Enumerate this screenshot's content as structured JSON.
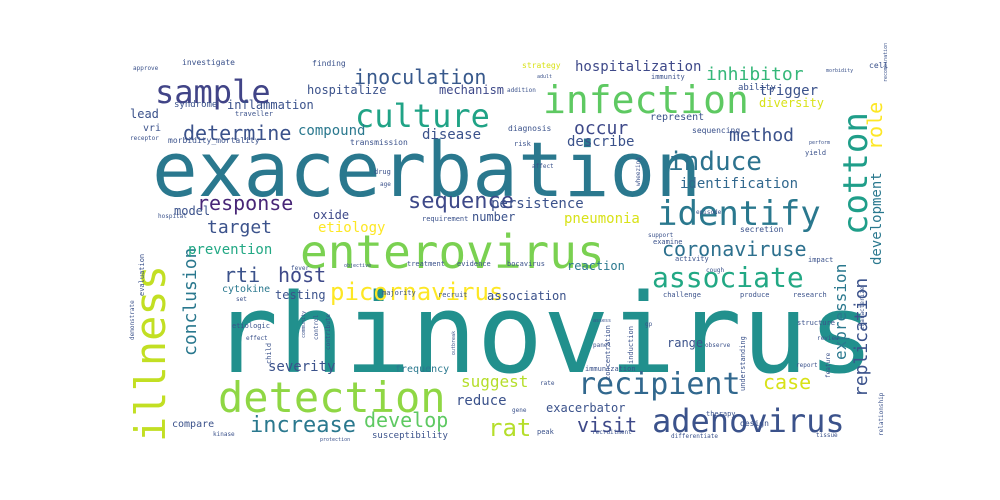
{
  "words": [
    {
      "text": "rhinovirus",
      "color": "#21908d"
    },
    {
      "text": "exacerbation",
      "color": "#2a788e"
    },
    {
      "text": "enterovirus",
      "color": "#7ad151"
    },
    {
      "text": "infection",
      "color": "#5ec962"
    },
    {
      "text": "detection",
      "color": "#8fd744"
    },
    {
      "text": "illness",
      "color": "#c2df23"
    },
    {
      "text": "culture",
      "color": "#20a386"
    },
    {
      "text": "sample",
      "color": "#414487"
    },
    {
      "text": "identify",
      "color": "#2a788e"
    },
    {
      "text": "cotton",
      "color": "#1f9e89"
    },
    {
      "text": "recipient",
      "color": "#31688e"
    },
    {
      "text": "adenovirus",
      "color": "#3b528b"
    },
    {
      "text": "associate",
      "color": "#22a884"
    },
    {
      "text": "induce",
      "color": "#2c728e"
    },
    {
      "text": "picornavirus",
      "color": "#fde725"
    },
    {
      "text": "sequence",
      "color": "#3e4989"
    },
    {
      "text": "inoculation",
      "color": "#38598c"
    },
    {
      "text": "coronaviruse",
      "color": "#2d708e"
    },
    {
      "text": "increase",
      "color": "#2a788e"
    },
    {
      "text": "determine",
      "color": "#3b528b"
    },
    {
      "text": "response",
      "color": "#482677"
    },
    {
      "text": "visit",
      "color": "#3e4989"
    },
    {
      "text": "rat",
      "color": "#b5de2b"
    },
    {
      "text": "develop",
      "color": "#5ec962"
    },
    {
      "text": "host",
      "color": "#3e4989"
    },
    {
      "text": "rti",
      "color": "#3b528b"
    },
    {
      "text": "target",
      "color": "#3b528b"
    },
    {
      "text": "method",
      "color": "#3b528b"
    },
    {
      "text": "occur",
      "color": "#3e4989"
    },
    {
      "text": "inhibitor",
      "color": "#35b779"
    },
    {
      "text": "conclusion",
      "color": "#2a788e"
    },
    {
      "text": "case",
      "color": "#d8e219"
    },
    {
      "text": "role",
      "color": "#fde725"
    },
    {
      "text": "replication",
      "color": "#3b528b"
    },
    {
      "text": "expression",
      "color": "#2a788e"
    },
    {
      "text": "development",
      "color": "#2a788e"
    },
    {
      "text": "persistence",
      "color": "#3b528b"
    },
    {
      "text": "pneumonia",
      "color": "#d8e219"
    },
    {
      "text": "identification",
      "color": "#31688e"
    },
    {
      "text": "suggest",
      "color": "#b5de2b"
    },
    {
      "text": "reduce",
      "color": "#3b528b"
    },
    {
      "text": "severity",
      "color": "#3b528b"
    },
    {
      "text": "prevention",
      "color": "#22a884"
    },
    {
      "text": "etiology",
      "color": "#fde725"
    },
    {
      "text": "compound",
      "color": "#2a788e"
    },
    {
      "text": "describe",
      "color": "#3b528b"
    },
    {
      "text": "disease",
      "color": "#3b528b"
    },
    {
      "text": "hospitalization",
      "color": "#3e4989"
    },
    {
      "text": "hospitalize",
      "color": "#3b528b"
    },
    {
      "text": "mechanism",
      "color": "#3e4989"
    },
    {
      "text": "inflammation",
      "color": "#3b528b"
    },
    {
      "text": "trigger",
      "color": "#3b528b"
    },
    {
      "text": "diversity",
      "color": "#d8e219"
    },
    {
      "text": "model",
      "color": "#3b528b"
    },
    {
      "text": "oxide",
      "color": "#3e4989"
    },
    {
      "text": "number",
      "color": "#3b528b"
    },
    {
      "text": "testing",
      "color": "#3b528b"
    },
    {
      "text": "reaction",
      "color": "#2a788e"
    },
    {
      "text": "association",
      "color": "#3b528b"
    },
    {
      "text": "range",
      "color": "#3b528b"
    },
    {
      "text": "exacerbator",
      "color": "#3b528b"
    },
    {
      "text": "frequency",
      "color": "#2a788e"
    },
    {
      "text": "compare",
      "color": "#3b528b"
    },
    {
      "text": "cytokine",
      "color": "#2a788e"
    },
    {
      "text": "lead",
      "color": "#3b528b"
    },
    {
      "text": "vri",
      "color": "#3b528b"
    },
    {
      "text": "syndrome",
      "color": "#3b528b"
    },
    {
      "text": "susceptibility",
      "color": "#3b528b"
    },
    {
      "text": "represent",
      "color": "#3b528b"
    },
    {
      "text": "ability",
      "color": "#3b528b"
    },
    {
      "text": "sequencing",
      "color": "#3b528b"
    },
    {
      "text": "diagnosis",
      "color": "#3b528b"
    },
    {
      "text": "transmission",
      "color": "#3b528b"
    },
    {
      "text": "morbidity_mortality",
      "color": "#3b528b"
    },
    {
      "text": "investigate",
      "color": "#3b528b"
    },
    {
      "text": "finding",
      "color": "#3b528b"
    },
    {
      "text": "approve",
      "color": "#3b528b"
    },
    {
      "text": "strategy",
      "color": "#d8e219"
    },
    {
      "text": "immunity",
      "color": "#3b528b"
    },
    {
      "text": "addition",
      "color": "#3b528b"
    },
    {
      "text": "receptor",
      "color": "#3b528b"
    },
    {
      "text": "treatment",
      "color": "#3b528b"
    },
    {
      "text": "evidence",
      "color": "#3b528b"
    },
    {
      "text": "bocavirus",
      "color": "#3b528b"
    },
    {
      "text": "requirement",
      "color": "#3b528b"
    },
    {
      "text": "majority",
      "color": "#3b528b"
    },
    {
      "text": "recruit",
      "color": "#3b528b"
    },
    {
      "text": "challenge",
      "color": "#3b528b"
    },
    {
      "text": "produce",
      "color": "#3b528b"
    },
    {
      "text": "research",
      "color": "#3b528b"
    },
    {
      "text": "activity",
      "color": "#3b528b"
    },
    {
      "text": "impact",
      "color": "#3b528b"
    },
    {
      "text": "examine",
      "color": "#3b528b"
    },
    {
      "text": "secretion",
      "color": "#3b528b"
    },
    {
      "text": "structure",
      "color": "#3b528b"
    },
    {
      "text": "review",
      "color": "#3b528b"
    },
    {
      "text": "therapy",
      "color": "#3b528b"
    },
    {
      "text": "design",
      "color": "#3b528b"
    },
    {
      "text": "understanding",
      "color": "#3b528b"
    },
    {
      "text": "immunization",
      "color": "#3b528b"
    },
    {
      "text": "concentration",
      "color": "#3b528b"
    },
    {
      "text": "induction",
      "color": "#3b528b"
    },
    {
      "text": "panel",
      "color": "#3b528b"
    },
    {
      "text": "child",
      "color": "#3b528b"
    },
    {
      "text": "control",
      "color": "#3b528b"
    },
    {
      "text": "effect",
      "color": "#3b528b"
    },
    {
      "text": "etiologic",
      "color": "#3b528b"
    },
    {
      "text": "set",
      "color": "#3b528b"
    },
    {
      "text": "fever",
      "color": "#3b528b"
    },
    {
      "text": "evaluation",
      "color": "#3b528b"
    },
    {
      "text": "hospital",
      "color": "#3b528b"
    },
    {
      "text": "rate",
      "color": "#3b528b"
    },
    {
      "text": "gene",
      "color": "#3b528b"
    },
    {
      "text": "peak",
      "color": "#3b528b"
    },
    {
      "text": "recruitment",
      "color": "#3b528b"
    },
    {
      "text": "differentiate",
      "color": "#3b528b"
    },
    {
      "text": "tissue",
      "color": "#3b528b"
    },
    {
      "text": "relationship",
      "color": "#3b528b"
    },
    {
      "text": "feature",
      "color": "#3b528b"
    },
    {
      "text": "report",
      "color": "#3b528b"
    },
    {
      "text": "kinase",
      "color": "#3b528b"
    },
    {
      "text": "protection",
      "color": "#3b528b"
    },
    {
      "text": "risk",
      "color": "#3b528b"
    },
    {
      "text": "affect",
      "color": "#3b528b"
    },
    {
      "text": "yield",
      "color": "#3b528b"
    },
    {
      "text": "perform",
      "color": "#3b528b"
    },
    {
      "text": "cell",
      "color": "#3b528b"
    },
    {
      "text": "morbidity",
      "color": "#3b528b"
    },
    {
      "text": "recombination",
      "color": "#3b528b"
    },
    {
      "text": "cough",
      "color": "#3b528b"
    },
    {
      "text": "episode",
      "color": "#3b528b"
    },
    {
      "text": "wheezing",
      "color": "#3b528b"
    },
    {
      "text": "support",
      "color": "#3b528b"
    },
    {
      "text": "adult",
      "color": "#3b528b"
    },
    {
      "text": "age",
      "color": "#3b528b"
    },
    {
      "text": "drug",
      "color": "#3b528b"
    },
    {
      "text": "observe",
      "color": "#3b528b"
    },
    {
      "text": "gp",
      "color": "#3b528b"
    },
    {
      "text": "assess",
      "color": "#3b528b"
    },
    {
      "text": "outbreak",
      "color": "#3b528b"
    },
    {
      "text": "contribute",
      "color": "#3b528b"
    },
    {
      "text": "community",
      "color": "#3b528b"
    },
    {
      "text": "objective",
      "color": "#3b528b"
    },
    {
      "text": "demonstrate",
      "color": "#3b528b"
    },
    {
      "text": "characterize",
      "color": "#3b528b"
    },
    {
      "text": "traveller",
      "color": "#3b528b"
    }
  ]
}
